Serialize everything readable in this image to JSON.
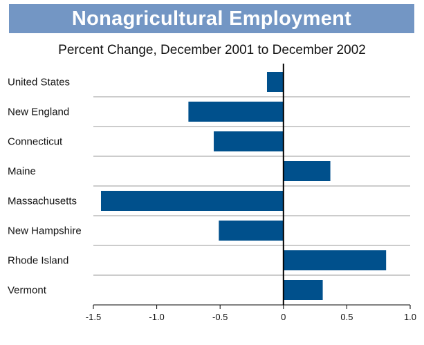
{
  "chart_data": {
    "type": "bar",
    "orientation": "horizontal",
    "title": "Nonagricultural Employment",
    "subtitle": "Percent Change, December 2001 to December 2002",
    "categories": [
      "United States",
      "New England",
      "Connecticut",
      "Maine",
      "Massachusetts",
      "New Hampshire",
      "Rhode Island",
      "Vermont"
    ],
    "values": [
      -0.13,
      -0.75,
      -0.55,
      0.37,
      -1.44,
      -0.51,
      0.81,
      0.31
    ],
    "xlim": [
      -1.5,
      1.0
    ],
    "xticks": [
      -1.5,
      -1.0,
      -0.5,
      0,
      0.5,
      1.0
    ],
    "xtick_labels": [
      "-1.5",
      "-1.0",
      "-0.5",
      "0",
      "0.5",
      "1.0"
    ],
    "bar_color": "#00508c",
    "title_bar_color": "#7396c4",
    "grid_color": "#9a9a9a",
    "grid": "horizontal separators"
  }
}
